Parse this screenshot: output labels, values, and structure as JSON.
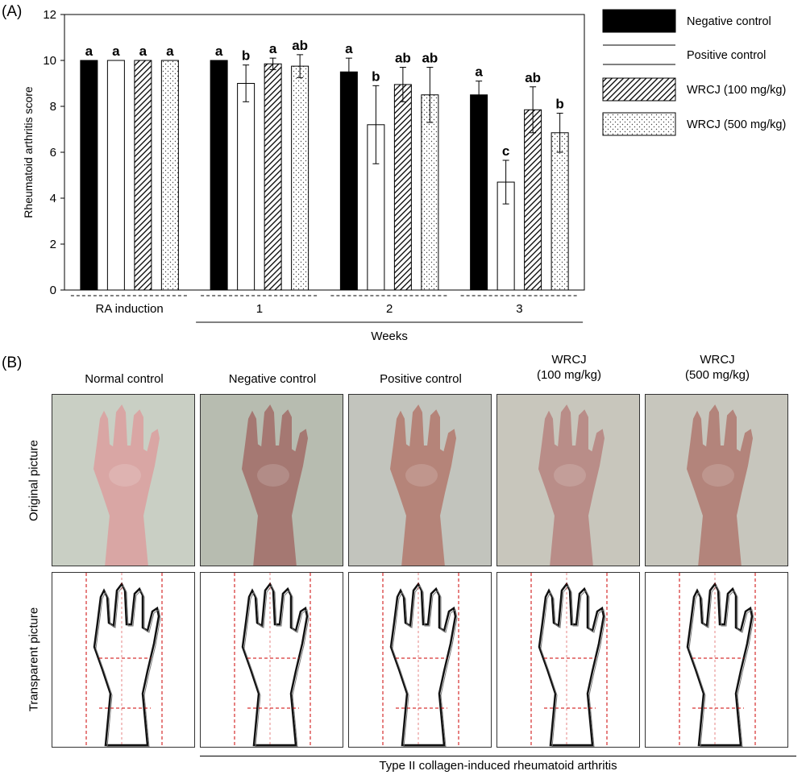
{
  "panel_a_label": "(A)",
  "panel_b_label": "(B)",
  "chart_data": {
    "type": "bar",
    "ylabel": "Rheumatoid arthritis score",
    "xlabel": "Weeks",
    "ylim": [
      0,
      12
    ],
    "yticks": [
      "0",
      "2",
      "4",
      "6",
      "8",
      "10",
      "12"
    ],
    "categories": [
      "RA induction",
      "1",
      "2",
      "3"
    ],
    "series": [
      {
        "name": "Negative control",
        "values": [
          10,
          10,
          9.5,
          8.5
        ],
        "errors": [
          0,
          0,
          0.6,
          0.6
        ],
        "letters": [
          "a",
          "a",
          "a",
          "a"
        ],
        "fill": "#000000"
      },
      {
        "name": "Positive control",
        "values": [
          10,
          9.0,
          7.2,
          4.7
        ],
        "errors": [
          0,
          0.8,
          1.7,
          0.95
        ],
        "letters": [
          "a",
          "b",
          "b",
          "c"
        ],
        "fill": "#ffffff"
      },
      {
        "name": "WRCJ (100 mg/kg)",
        "values": [
          10,
          9.85,
          8.95,
          7.85
        ],
        "errors": [
          0,
          0.25,
          0.75,
          1.0
        ],
        "letters": [
          "a",
          "a",
          "ab",
          "ab"
        ],
        "fill": "hatch"
      },
      {
        "name": "WRCJ (500 mg/kg)",
        "values": [
          10,
          9.75,
          8.5,
          6.85
        ],
        "errors": [
          0,
          0.5,
          1.2,
          0.85
        ],
        "letters": [
          "a",
          "ab",
          "ab",
          "b"
        ],
        "fill": "dots"
      }
    ],
    "legend_position": "right"
  },
  "panel_b": {
    "columns": [
      {
        "title_line1": "Normal control",
        "title_line2": ""
      },
      {
        "title_line1": "Negative control",
        "title_line2": ""
      },
      {
        "title_line1": "Positive control",
        "title_line2": ""
      },
      {
        "title_line1": "WRCJ",
        "title_line2": "(100 mg/kg)"
      },
      {
        "title_line1": "WRCJ",
        "title_line2": "(500 mg/kg)"
      }
    ],
    "row_labels": [
      "Original picture",
      "Transparent picture"
    ],
    "footer": "Type II collagen-induced rheumatoid arthritis",
    "photo_backgrounds": [
      "#c9cfc4",
      "#b7bcb0",
      "#c2c4bd",
      "#c8c6bc",
      "#c7c6bd"
    ],
    "paw_colors": [
      "#d9a6a4",
      "#a57872",
      "#b58479",
      "#b98d88",
      "#b3847b"
    ]
  }
}
